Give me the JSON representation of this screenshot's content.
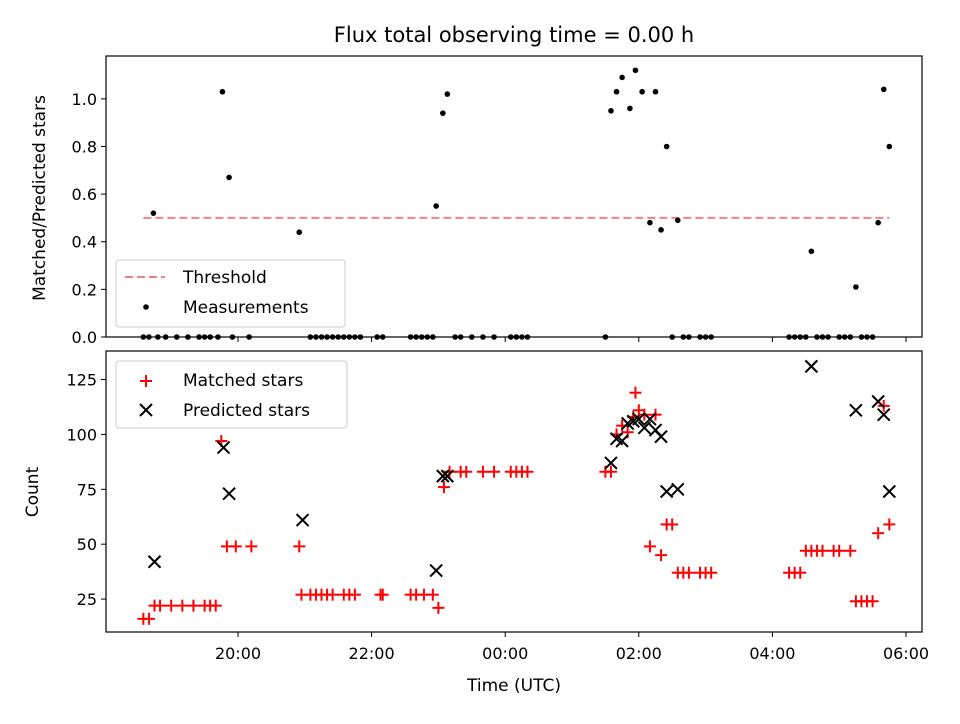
{
  "chart_data": [
    {
      "type": "scatter",
      "title": "Flux total observing time = 0.00 h",
      "ylabel": "Matched/Predicted stars",
      "xlabel": "",
      "ylim": [
        0,
        1.18
      ],
      "yticks": [
        "0.0",
        "0.2",
        "0.4",
        "0.6",
        "0.8",
        "1.0"
      ],
      "yticks_values": [
        0,
        0.2,
        0.4,
        0.6,
        0.8,
        1.0
      ],
      "legend": {
        "position": "lower-left",
        "entries": [
          "Threshold",
          "Measurements"
        ]
      },
      "threshold": {
        "name": "Threshold",
        "y": 0.5,
        "x_start": "18:35",
        "x_end": "05:45",
        "color": "#f08080",
        "style": "dashed"
      },
      "series": [
        {
          "name": "Measurements",
          "color": "#000000",
          "points": [
            [
              "18:35",
              0
            ],
            [
              "18:40",
              0
            ],
            [
              "18:44",
              0.52
            ],
            [
              "18:48",
              0
            ],
            [
              "18:55",
              0
            ],
            [
              "19:05",
              0
            ],
            [
              "19:15",
              0
            ],
            [
              "19:25",
              0
            ],
            [
              "19:30",
              0
            ],
            [
              "19:35",
              0
            ],
            [
              "19:42",
              0
            ],
            [
              "19:46",
              1.03
            ],
            [
              "19:52",
              0.67
            ],
            [
              "19:55",
              0
            ],
            [
              "20:10",
              0
            ],
            [
              "20:55",
              0.44
            ],
            [
              "21:05",
              0
            ],
            [
              "21:10",
              0
            ],
            [
              "21:15",
              0
            ],
            [
              "21:20",
              0
            ],
            [
              "21:25",
              0
            ],
            [
              "21:30",
              0
            ],
            [
              "21:35",
              0
            ],
            [
              "21:40",
              0
            ],
            [
              "21:45",
              0
            ],
            [
              "21:50",
              0
            ],
            [
              "22:05",
              0
            ],
            [
              "22:10",
              0
            ],
            [
              "22:35",
              0
            ],
            [
              "22:40",
              0
            ],
            [
              "22:45",
              0
            ],
            [
              "22:50",
              0
            ],
            [
              "22:55",
              0
            ],
            [
              "22:58",
              0.55
            ],
            [
              "23:04",
              0.94
            ],
            [
              "23:08",
              1.02
            ],
            [
              "23:15",
              0
            ],
            [
              "23:20",
              0
            ],
            [
              "23:30",
              0
            ],
            [
              "23:40",
              0
            ],
            [
              "23:50",
              0
            ],
            [
              "00:05",
              0
            ],
            [
              "00:10",
              0
            ],
            [
              "00:15",
              0
            ],
            [
              "00:20",
              0
            ],
            [
              "01:30",
              0
            ],
            [
              "01:35",
              0.95
            ],
            [
              "01:40",
              1.03
            ],
            [
              "01:45",
              1.09
            ],
            [
              "01:52",
              0.96
            ],
            [
              "01:57",
              1.12
            ],
            [
              "02:03",
              1.03
            ],
            [
              "02:10",
              0.48
            ],
            [
              "02:15",
              1.03
            ],
            [
              "02:20",
              0.45
            ],
            [
              "02:25",
              0.8
            ],
            [
              "02:30",
              0
            ],
            [
              "02:35",
              0.49
            ],
            [
              "02:40",
              0
            ],
            [
              "02:45",
              0
            ],
            [
              "02:55",
              0
            ],
            [
              "03:00",
              0
            ],
            [
              "03:05",
              0
            ],
            [
              "04:15",
              0
            ],
            [
              "04:20",
              0
            ],
            [
              "04:25",
              0
            ],
            [
              "04:30",
              0
            ],
            [
              "04:35",
              0.36
            ],
            [
              "04:40",
              0
            ],
            [
              "04:45",
              0
            ],
            [
              "04:50",
              0
            ],
            [
              "05:00",
              0
            ],
            [
              "05:05",
              0
            ],
            [
              "05:10",
              0
            ],
            [
              "05:15",
              0.21
            ],
            [
              "05:20",
              0
            ],
            [
              "05:25",
              0
            ],
            [
              "05:30",
              0
            ],
            [
              "05:35",
              0.48
            ],
            [
              "05:40",
              1.04
            ],
            [
              "05:45",
              0.8
            ]
          ]
        }
      ]
    },
    {
      "type": "scatter",
      "title": "",
      "ylabel": "Count",
      "xlabel": "Time (UTC)",
      "ylim": [
        10,
        138
      ],
      "yticks": [
        "25",
        "50",
        "75",
        "100",
        "125"
      ],
      "yticks_values": [
        25,
        50,
        75,
        100,
        125
      ],
      "x_ticks": [
        "20:00",
        "22:00",
        "00:00",
        "02:00",
        "04:00",
        "06:00"
      ],
      "legend": {
        "position": "upper-left",
        "entries": [
          "Matched stars",
          "Predicted stars"
        ]
      },
      "series": [
        {
          "name": "Matched stars",
          "marker": "plus",
          "color": "#ff0000",
          "points": [
            [
              "18:35",
              16
            ],
            [
              "18:40",
              16
            ],
            [
              "18:45",
              22
            ],
            [
              "18:50",
              22
            ],
            [
              "19:00",
              22
            ],
            [
              "19:10",
              22
            ],
            [
              "19:20",
              22
            ],
            [
              "19:30",
              22
            ],
            [
              "19:35",
              22
            ],
            [
              "19:40",
              22
            ],
            [
              "19:45",
              97
            ],
            [
              "19:50",
              49
            ],
            [
              "19:58",
              49
            ],
            [
              "20:12",
              49
            ],
            [
              "20:55",
              49
            ],
            [
              "20:57",
              27
            ],
            [
              "21:05",
              27
            ],
            [
              "21:10",
              27
            ],
            [
              "21:15",
              27
            ],
            [
              "21:20",
              27
            ],
            [
              "21:25",
              27
            ],
            [
              "21:35",
              27
            ],
            [
              "21:40",
              27
            ],
            [
              "21:45",
              27
            ],
            [
              "22:08",
              27
            ],
            [
              "22:10",
              27
            ],
            [
              "22:35",
              27
            ],
            [
              "22:40",
              27
            ],
            [
              "22:47",
              27
            ],
            [
              "22:55",
              27
            ],
            [
              "23:00",
              21
            ],
            [
              "23:05",
              76
            ],
            [
              "23:10",
              83
            ],
            [
              "23:20",
              83
            ],
            [
              "23:25",
              83
            ],
            [
              "23:40",
              83
            ],
            [
              "23:50",
              83
            ],
            [
              "00:05",
              83
            ],
            [
              "00:10",
              83
            ],
            [
              "00:15",
              83
            ],
            [
              "00:20",
              83
            ],
            [
              "01:30",
              83
            ],
            [
              "01:35",
              83
            ],
            [
              "01:40",
              100
            ],
            [
              "01:45",
              104
            ],
            [
              "01:50",
              101
            ],
            [
              "01:55",
              108
            ],
            [
              "01:57",
              119
            ],
            [
              "02:00",
              111
            ],
            [
              "02:05",
              109
            ],
            [
              "02:10",
              49
            ],
            [
              "02:15",
              109
            ],
            [
              "02:20",
              45
            ],
            [
              "02:25",
              59
            ],
            [
              "02:30",
              59
            ],
            [
              "02:35",
              37
            ],
            [
              "02:40",
              37
            ],
            [
              "02:45",
              37
            ],
            [
              "02:55",
              37
            ],
            [
              "03:00",
              37
            ],
            [
              "03:05",
              37
            ],
            [
              "04:15",
              37
            ],
            [
              "04:20",
              37
            ],
            [
              "04:25",
              37
            ],
            [
              "04:30",
              47
            ],
            [
              "04:35",
              47
            ],
            [
              "04:40",
              47
            ],
            [
              "04:45",
              47
            ],
            [
              "04:55",
              47
            ],
            [
              "05:00",
              47
            ],
            [
              "05:10",
              47
            ],
            [
              "05:15",
              24
            ],
            [
              "05:20",
              24
            ],
            [
              "05:25",
              24
            ],
            [
              "05:30",
              24
            ],
            [
              "05:35",
              55
            ],
            [
              "05:40",
              113
            ],
            [
              "05:45",
              59
            ]
          ]
        },
        {
          "name": "Predicted stars",
          "marker": "x",
          "color": "#000000",
          "points": [
            [
              "18:45",
              42
            ],
            [
              "19:47",
              94
            ],
            [
              "19:52",
              73
            ],
            [
              "20:58",
              61
            ],
            [
              "22:58",
              38
            ],
            [
              "23:04",
              81
            ],
            [
              "23:08",
              81
            ],
            [
              "01:35",
              87
            ],
            [
              "01:40",
              98
            ],
            [
              "01:45",
              97
            ],
            [
              "01:50",
              105
            ],
            [
              "01:55",
              106
            ],
            [
              "02:00",
              107
            ],
            [
              "02:05",
              103
            ],
            [
              "02:10",
              107
            ],
            [
              "02:15",
              102
            ],
            [
              "02:20",
              99
            ],
            [
              "02:25",
              74
            ],
            [
              "02:35",
              75
            ],
            [
              "04:35",
              131
            ],
            [
              "05:15",
              111
            ],
            [
              "05:35",
              115
            ],
            [
              "05:40",
              109
            ],
            [
              "05:45",
              74
            ]
          ]
        }
      ]
    }
  ]
}
